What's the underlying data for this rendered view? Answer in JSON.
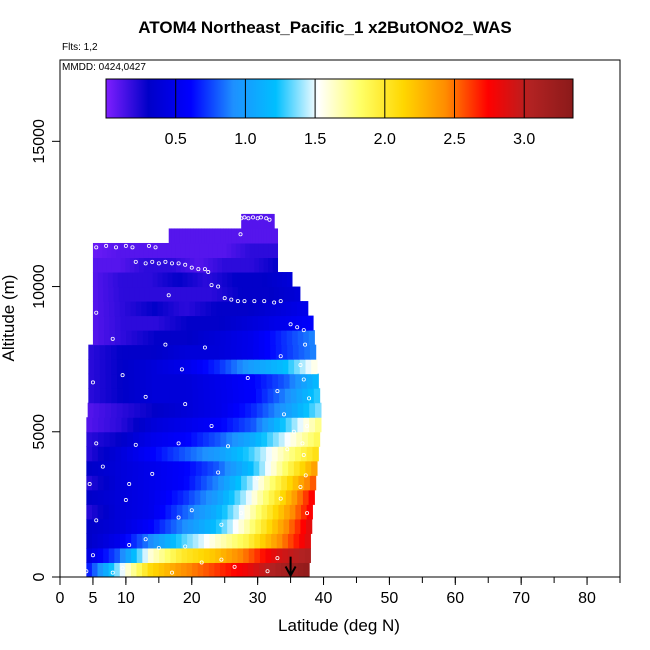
{
  "chart_data": {
    "type": "heatmap",
    "title": "ATOM4 Northeast_Pacific_1 x2ButONO2_WAS",
    "flights_label": "Flts: 1,2",
    "dates_label": "MMDD: 0424,0427",
    "xlabel": "Latitude (deg N)",
    "ylabel": "Altitude (m)",
    "xlim": [
      0,
      85
    ],
    "ylim": [
      0,
      17800
    ],
    "xticks": [
      0,
      5,
      10,
      20,
      30,
      40,
      50,
      60,
      70,
      80
    ],
    "yticks": [
      0,
      5000,
      10000,
      15000
    ],
    "colorbar": {
      "range": [
        0,
        3.35
      ],
      "ticks": [
        "0.5",
        "1.0",
        "1.5",
        "2.0",
        "2.5",
        "3.0"
      ],
      "tick_values": [
        0.5,
        1.0,
        1.5,
        2.0,
        2.5,
        3.0
      ],
      "colors": [
        "#7f1fff",
        "#0000c8",
        "#0000ff",
        "#1e90ff",
        "#00bfff",
        "#ffffff",
        "#ffff66",
        "#ffd700",
        "#ff8c00",
        "#ff0000",
        "#b22222",
        "#8b1a1a"
      ]
    },
    "layers": [
      {
        "alt": 250,
        "lat_min": 4.0,
        "lat_max": 37.8,
        "edge_values": [
          0.6,
          1.4,
          2.1,
          2.4,
          2.6,
          2.8,
          3.1,
          3.3
        ]
      },
      {
        "alt": 750,
        "lat_min": 4.0,
        "lat_max": 38.0,
        "edge_values": [
          0.4,
          0.8,
          1.6,
          2.0,
          2.2,
          2.5,
          2.9,
          3.1
        ]
      },
      {
        "alt": 1250,
        "lat_min": 4.0,
        "lat_max": 38.0,
        "edge_values": [
          0.3,
          0.5,
          0.9,
          1.3,
          1.6,
          1.9,
          2.4,
          2.9
        ]
      },
      {
        "alt": 1750,
        "lat_min": 4.0,
        "lat_max": 38.2,
        "edge_values": [
          0.3,
          0.4,
          0.6,
          0.9,
          1.2,
          1.7,
          2.3,
          2.9
        ]
      },
      {
        "alt": 2250,
        "lat_min": 4.0,
        "lat_max": 38.3,
        "edge_values": [
          0.2,
          0.4,
          0.5,
          0.8,
          1.1,
          1.6,
          2.2,
          2.8
        ]
      },
      {
        "alt": 2750,
        "lat_min": 4.0,
        "lat_max": 38.6,
        "edge_values": [
          0.3,
          0.4,
          0.5,
          0.7,
          1.0,
          1.5,
          2.1,
          2.8
        ]
      },
      {
        "alt": 3250,
        "lat_min": 4.0,
        "lat_max": 38.8,
        "edge_values": [
          0.2,
          0.4,
          0.5,
          0.6,
          0.9,
          1.4,
          2.0,
          2.6
        ]
      },
      {
        "alt": 3750,
        "lat_min": 4.0,
        "lat_max": 39.0,
        "edge_values": [
          0.3,
          0.4,
          0.5,
          0.6,
          0.8,
          1.2,
          1.8,
          2.4
        ]
      },
      {
        "alt": 4250,
        "lat_min": 4.0,
        "lat_max": 39.2,
        "edge_values": [
          0.2,
          0.4,
          0.6,
          0.8,
          1.0,
          1.3,
          1.7,
          2.1
        ]
      },
      {
        "alt": 4750,
        "lat_min": 4.0,
        "lat_max": 39.4,
        "edge_values": [
          0.2,
          0.3,
          0.5,
          0.6,
          0.8,
          1.1,
          1.5,
          1.9
        ]
      },
      {
        "alt": 5250,
        "lat_min": 4.0,
        "lat_max": 39.6,
        "edge_values": [
          0.1,
          0.2,
          0.4,
          0.5,
          0.6,
          0.8,
          1.3,
          1.8
        ]
      },
      {
        "alt": 5750,
        "lat_min": 4.2,
        "lat_max": 39.6,
        "edge_values": [
          0.1,
          0.2,
          0.3,
          0.4,
          0.5,
          0.7,
          1.0,
          1.4
        ]
      },
      {
        "alt": 6250,
        "lat_min": 4.3,
        "lat_max": 39.4,
        "edge_values": [
          0.2,
          0.3,
          0.4,
          0.4,
          0.5,
          0.6,
          0.9,
          1.3
        ]
      },
      {
        "alt": 6750,
        "lat_min": 4.3,
        "lat_max": 39.2,
        "edge_values": [
          0.2,
          0.3,
          0.4,
          0.4,
          0.5,
          0.6,
          0.8,
          1.2
        ]
      },
      {
        "alt": 7250,
        "lat_min": 4.3,
        "lat_max": 39.0,
        "edge_values": [
          0.2,
          0.3,
          0.4,
          0.5,
          0.7,
          1.0,
          1.2,
          1.6
        ]
      },
      {
        "alt": 7750,
        "lat_min": 4.3,
        "lat_max": 38.8,
        "edge_values": [
          0.2,
          0.3,
          0.3,
          0.4,
          0.4,
          0.5,
          0.7,
          0.9
        ]
      },
      {
        "alt": 8250,
        "lat_min": 5.0,
        "lat_max": 38.6,
        "edge_values": [
          0.1,
          0.2,
          0.3,
          0.3,
          0.4,
          0.5,
          0.7,
          0.9
        ]
      },
      {
        "alt": 8750,
        "lat_min": 5.0,
        "lat_max": 38.4,
        "edge_values": [
          0.1,
          0.2,
          0.2,
          0.3,
          0.3,
          0.4,
          0.5,
          0.6
        ]
      },
      {
        "alt": 9250,
        "lat_min": 5.0,
        "lat_max": 37.6,
        "edge_values": [
          0.1,
          0.2,
          0.3,
          0.2,
          0.3,
          0.3,
          0.4,
          0.5
        ]
      },
      {
        "alt": 9750,
        "lat_min": 5.0,
        "lat_max": 36.4,
        "edge_values": [
          0.1,
          0.2,
          0.2,
          0.2,
          0.2,
          0.3,
          0.3,
          0.4
        ]
      },
      {
        "alt": 10250,
        "lat_min": 5.0,
        "lat_max": 35.2,
        "edge_values": [
          0.1,
          0.2,
          0.2,
          0.3,
          0.2,
          0.3,
          0.3,
          0.4
        ]
      },
      {
        "alt": 10750,
        "lat_min": 5.0,
        "lat_max": 33.0,
        "edge_values": [
          0.1,
          0.1,
          0.2,
          0.2,
          0.1,
          0.2,
          0.2,
          0.3
        ]
      },
      {
        "alt": 11250,
        "lat_min": 5.0,
        "lat_max": 33.0,
        "edge_values": [
          0.05,
          0.1,
          0.1,
          0.1,
          0.1,
          0.1,
          0.2,
          0.2
        ]
      },
      {
        "alt": 11750,
        "lat_min": 16.5,
        "lat_max": 33.0,
        "edge_values": [
          0.1,
          0.1,
          0.1,
          0.1,
          0.1,
          0.1,
          0.1,
          0.1
        ]
      },
      {
        "alt": 12250,
        "lat_min": 27.5,
        "lat_max": 32.5,
        "edge_values": [
          0.1,
          0.1,
          0.1,
          0.1,
          0.1,
          0.1,
          0.1,
          0.1
        ]
      }
    ],
    "points": [
      {
        "x": 5.5,
        "y": 11350
      },
      {
        "x": 7.0,
        "y": 11400
      },
      {
        "x": 8.5,
        "y": 11350
      },
      {
        "x": 10.0,
        "y": 11400
      },
      {
        "x": 11.0,
        "y": 11350
      },
      {
        "x": 13.5,
        "y": 11400
      },
      {
        "x": 14.5,
        "y": 11350
      },
      {
        "x": 11.5,
        "y": 10850
      },
      {
        "x": 13.0,
        "y": 10800
      },
      {
        "x": 14.0,
        "y": 10850
      },
      {
        "x": 15.0,
        "y": 10800
      },
      {
        "x": 16.0,
        "y": 10850
      },
      {
        "x": 17.0,
        "y": 10800
      },
      {
        "x": 18.0,
        "y": 10800
      },
      {
        "x": 19.0,
        "y": 10750
      },
      {
        "x": 20.0,
        "y": 10650
      },
      {
        "x": 21.0,
        "y": 10600
      },
      {
        "x": 22.0,
        "y": 10600
      },
      {
        "x": 22.5,
        "y": 10500
      },
      {
        "x": 27.5,
        "y": 12350
      },
      {
        "x": 28.0,
        "y": 12380
      },
      {
        "x": 28.6,
        "y": 12350
      },
      {
        "x": 29.3,
        "y": 12380
      },
      {
        "x": 30.0,
        "y": 12350
      },
      {
        "x": 30.5,
        "y": 12380
      },
      {
        "x": 31.3,
        "y": 12350
      },
      {
        "x": 31.8,
        "y": 12300
      },
      {
        "x": 27.4,
        "y": 11800
      },
      {
        "x": 23.0,
        "y": 10050
      },
      {
        "x": 24.0,
        "y": 10000
      },
      {
        "x": 25.0,
        "y": 9600
      },
      {
        "x": 26.0,
        "y": 9550
      },
      {
        "x": 27.0,
        "y": 9500
      },
      {
        "x": 28.0,
        "y": 9500
      },
      {
        "x": 29.5,
        "y": 9500
      },
      {
        "x": 31.0,
        "y": 9500
      },
      {
        "x": 32.5,
        "y": 9450
      },
      {
        "x": 33.5,
        "y": 9500
      },
      {
        "x": 16.5,
        "y": 9700
      },
      {
        "x": 5.5,
        "y": 9100
      },
      {
        "x": 35.0,
        "y": 8700
      },
      {
        "x": 36.0,
        "y": 8600
      },
      {
        "x": 37.0,
        "y": 8500
      },
      {
        "x": 37.2,
        "y": 8000
      },
      {
        "x": 8.0,
        "y": 8200
      },
      {
        "x": 16.0,
        "y": 8000
      },
      {
        "x": 22.0,
        "y": 7900
      },
      {
        "x": 33.5,
        "y": 7600
      },
      {
        "x": 36.5,
        "y": 7300
      },
      {
        "x": 37.0,
        "y": 6800
      },
      {
        "x": 18.5,
        "y": 7150
      },
      {
        "x": 5.0,
        "y": 6700
      },
      {
        "x": 9.5,
        "y": 6950
      },
      {
        "x": 28.5,
        "y": 6850
      },
      {
        "x": 33.0,
        "y": 6400
      },
      {
        "x": 37.8,
        "y": 6150
      },
      {
        "x": 13.0,
        "y": 6200
      },
      {
        "x": 19.0,
        "y": 5950
      },
      {
        "x": 34.0,
        "y": 5600
      },
      {
        "x": 37.5,
        "y": 5200
      },
      {
        "x": 23.0,
        "y": 5200
      },
      {
        "x": 35.5,
        "y": 5000
      },
      {
        "x": 36.8,
        "y": 4600
      },
      {
        "x": 5.5,
        "y": 4600
      },
      {
        "x": 18.0,
        "y": 4600
      },
      {
        "x": 11.5,
        "y": 4550
      },
      {
        "x": 25.5,
        "y": 4500
      },
      {
        "x": 34.5,
        "y": 4400
      },
      {
        "x": 37.0,
        "y": 4200
      },
      {
        "x": 6.5,
        "y": 3800
      },
      {
        "x": 14.0,
        "y": 3550
      },
      {
        "x": 24.0,
        "y": 3600
      },
      {
        "x": 37.3,
        "y": 3500
      },
      {
        "x": 30.0,
        "y": 3400
      },
      {
        "x": 4.5,
        "y": 3200
      },
      {
        "x": 10.5,
        "y": 3200
      },
      {
        "x": 36.5,
        "y": 3100
      },
      {
        "x": 33.5,
        "y": 2700
      },
      {
        "x": 10.0,
        "y": 2650
      },
      {
        "x": 20.0,
        "y": 2300
      },
      {
        "x": 27.5,
        "y": 2200
      },
      {
        "x": 37.5,
        "y": 2200
      },
      {
        "x": 18.0,
        "y": 2050
      },
      {
        "x": 5.5,
        "y": 1950
      },
      {
        "x": 24.5,
        "y": 1800
      },
      {
        "x": 13.0,
        "y": 1300
      },
      {
        "x": 19.0,
        "y": 1050
      },
      {
        "x": 5.0,
        "y": 750
      },
      {
        "x": 10.5,
        "y": 1100
      },
      {
        "x": 15.0,
        "y": 1000
      },
      {
        "x": 9.5,
        "y": 300
      },
      {
        "x": 8.0,
        "y": 150
      },
      {
        "x": 17.0,
        "y": 150
      },
      {
        "x": 4.0,
        "y": 200
      },
      {
        "x": 21.5,
        "y": 500
      },
      {
        "x": 24.5,
        "y": 600
      },
      {
        "x": 26.5,
        "y": 350
      },
      {
        "x": 31.5,
        "y": 200
      },
      {
        "x": 33.0,
        "y": 650
      }
    ],
    "arrow": {
      "lat": 35.0,
      "alt_top": 700,
      "alt_bottom": 50
    }
  }
}
